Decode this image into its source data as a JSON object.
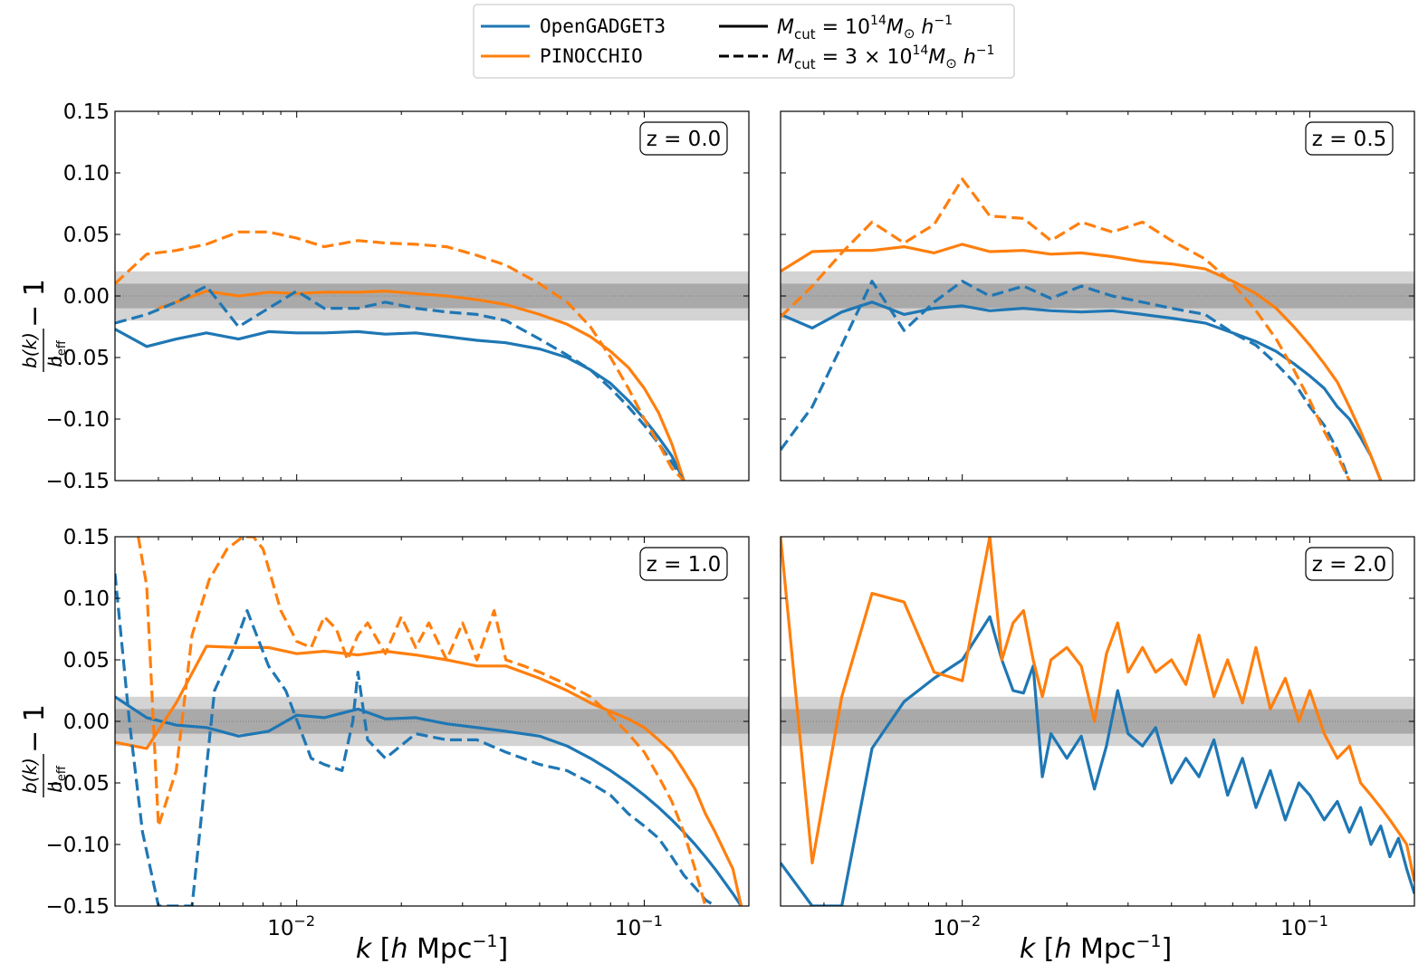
{
  "legend": {
    "series": [
      {
        "label": "OpenGADGET3",
        "color": "#1f77b4"
      },
      {
        "label": "PINOCCHIO",
        "color": "#ff7f0e"
      }
    ],
    "cuts": [
      {
        "style": "solid",
        "text": "M_cut = 10^14 M_⊙ h^-1",
        "exponent": "14",
        "prefix": ""
      },
      {
        "style": "dashed",
        "text": "M_cut = 3 × 10^14 M_⊙ h^-1",
        "exponent": "14",
        "prefix": "3 × "
      }
    ]
  },
  "labels": {
    "ylabel": "b(k)/b_eff − 1",
    "xlabel": "k [h Mpc^-1]",
    "xticks": [
      "10^-2",
      "10^-1"
    ],
    "yticks": [
      "0.15",
      "0.10",
      "0.05",
      "0.00",
      "−0.05",
      "−0.10",
      "−0.15"
    ]
  },
  "chart_data": [
    {
      "type": "line",
      "panel": "z = 0.0",
      "xscale": "log",
      "xlim": [
        0.003,
        0.2
      ],
      "ylim": [
        -0.15,
        0.15
      ],
      "bands": [
        {
          "lo": -0.02,
          "hi": 0.02
        },
        {
          "lo": -0.01,
          "hi": 0.01
        }
      ],
      "series": [
        {
          "name": "OpenGADGET3",
          "cut": "1e14",
          "style": "solid",
          "x": [
            0.003,
            0.0037,
            0.0045,
            0.0055,
            0.0068,
            0.0083,
            0.01,
            0.012,
            0.015,
            0.018,
            0.022,
            0.027,
            0.033,
            0.04,
            0.05,
            0.06,
            0.07,
            0.08,
            0.09,
            0.1,
            0.11,
            0.12,
            0.13
          ],
          "y": [
            -0.027,
            -0.041,
            -0.035,
            -0.03,
            -0.035,
            -0.029,
            -0.03,
            -0.03,
            -0.029,
            -0.031,
            -0.03,
            -0.033,
            -0.036,
            -0.038,
            -0.043,
            -0.05,
            -0.06,
            -0.071,
            -0.085,
            -0.1,
            -0.115,
            -0.13,
            -0.15
          ]
        },
        {
          "name": "PINOCCHIO",
          "cut": "1e14",
          "style": "solid",
          "x": [
            0.004,
            0.0045,
            0.0055,
            0.0068,
            0.0083,
            0.01,
            0.012,
            0.015,
            0.018,
            0.022,
            0.027,
            0.033,
            0.04,
            0.05,
            0.06,
            0.07,
            0.08,
            0.09,
            0.1,
            0.11,
            0.12,
            0.13
          ],
          "y": [
            -0.01,
            -0.005,
            0.004,
            0.0,
            0.003,
            0.002,
            0.003,
            0.003,
            0.004,
            0.002,
            0.0,
            -0.003,
            -0.007,
            -0.015,
            -0.023,
            -0.033,
            -0.045,
            -0.058,
            -0.075,
            -0.095,
            -0.12,
            -0.15
          ]
        },
        {
          "name": "OpenGADGET3",
          "cut": "3e14",
          "style": "dashed",
          "x": [
            0.003,
            0.0037,
            0.0045,
            0.0055,
            0.0068,
            0.0083,
            0.01,
            0.012,
            0.015,
            0.018,
            0.022,
            0.027,
            0.033,
            0.04,
            0.05,
            0.06,
            0.07,
            0.08,
            0.09,
            0.1,
            0.11,
            0.12,
            0.13
          ],
          "y": [
            -0.022,
            -0.015,
            -0.005,
            0.008,
            -0.025,
            -0.01,
            0.004,
            -0.01,
            -0.01,
            -0.005,
            -0.01,
            -0.013,
            -0.015,
            -0.02,
            -0.035,
            -0.048,
            -0.06,
            -0.075,
            -0.09,
            -0.105,
            -0.12,
            -0.135,
            -0.15
          ]
        },
        {
          "name": "PINOCCHIO",
          "cut": "3e14",
          "style": "dashed",
          "x": [
            0.003,
            0.0037,
            0.0045,
            0.0055,
            0.0068,
            0.0083,
            0.01,
            0.012,
            0.015,
            0.018,
            0.022,
            0.027,
            0.033,
            0.04,
            0.05,
            0.06,
            0.07,
            0.08,
            0.09,
            0.1,
            0.11,
            0.12,
            0.13
          ],
          "y": [
            0.01,
            0.034,
            0.037,
            0.042,
            0.052,
            0.052,
            0.047,
            0.04,
            0.045,
            0.043,
            0.042,
            0.04,
            0.033,
            0.025,
            0.01,
            -0.005,
            -0.025,
            -0.05,
            -0.075,
            -0.1,
            -0.12,
            -0.14,
            -0.15
          ]
        }
      ]
    },
    {
      "type": "line",
      "panel": "z = 0.5",
      "xscale": "log",
      "xlim": [
        0.003,
        0.2
      ],
      "ylim": [
        -0.15,
        0.15
      ],
      "bands": [
        {
          "lo": -0.02,
          "hi": 0.02
        },
        {
          "lo": -0.01,
          "hi": 0.01
        }
      ],
      "series": [
        {
          "name": "OpenGADGET3",
          "cut": "1e14",
          "style": "solid",
          "x": [
            0.003,
            0.0037,
            0.0045,
            0.0055,
            0.0068,
            0.0083,
            0.01,
            0.012,
            0.015,
            0.018,
            0.022,
            0.027,
            0.033,
            0.04,
            0.05,
            0.06,
            0.07,
            0.08,
            0.09,
            0.1,
            0.11,
            0.12,
            0.13,
            0.14,
            0.15,
            0.16
          ],
          "y": [
            -0.015,
            -0.026,
            -0.013,
            -0.005,
            -0.015,
            -0.01,
            -0.008,
            -0.012,
            -0.01,
            -0.012,
            -0.013,
            -0.012,
            -0.015,
            -0.018,
            -0.022,
            -0.03,
            -0.037,
            -0.045,
            -0.055,
            -0.065,
            -0.075,
            -0.09,
            -0.1,
            -0.115,
            -0.13,
            -0.15
          ]
        },
        {
          "name": "PINOCCHIO",
          "cut": "1e14",
          "style": "solid",
          "x": [
            0.003,
            0.0037,
            0.0045,
            0.0055,
            0.0068,
            0.0083,
            0.01,
            0.012,
            0.015,
            0.018,
            0.022,
            0.027,
            0.033,
            0.04,
            0.05,
            0.06,
            0.07,
            0.08,
            0.09,
            0.1,
            0.11,
            0.12,
            0.13,
            0.14,
            0.15,
            0.16
          ],
          "y": [
            0.02,
            0.036,
            0.037,
            0.037,
            0.04,
            0.035,
            0.042,
            0.036,
            0.037,
            0.034,
            0.035,
            0.032,
            0.028,
            0.026,
            0.022,
            0.012,
            0.002,
            -0.01,
            -0.025,
            -0.04,
            -0.055,
            -0.07,
            -0.09,
            -0.11,
            -0.13,
            -0.15
          ]
        },
        {
          "name": "OpenGADGET3",
          "cut": "3e14",
          "style": "dashed",
          "x": [
            0.003,
            0.0037,
            0.0045,
            0.0055,
            0.0068,
            0.0083,
            0.01,
            0.012,
            0.015,
            0.018,
            0.022,
            0.027,
            0.033,
            0.04,
            0.05,
            0.06,
            0.07,
            0.08,
            0.09,
            0.1,
            0.11,
            0.12,
            0.13
          ],
          "y": [
            -0.125,
            -0.09,
            -0.04,
            0.012,
            -0.028,
            -0.005,
            0.012,
            0.0,
            0.008,
            -0.002,
            0.008,
            0.0,
            -0.005,
            -0.01,
            -0.015,
            -0.03,
            -0.04,
            -0.055,
            -0.07,
            -0.09,
            -0.105,
            -0.125,
            -0.15
          ]
        },
        {
          "name": "PINOCCHIO",
          "cut": "3e14",
          "style": "dashed",
          "x": [
            0.003,
            0.0037,
            0.0045,
            0.0055,
            0.0068,
            0.0083,
            0.01,
            0.012,
            0.015,
            0.018,
            0.022,
            0.027,
            0.033,
            0.04,
            0.05,
            0.06,
            0.07,
            0.08,
            0.09,
            0.1,
            0.11,
            0.12,
            0.13
          ],
          "y": [
            -0.017,
            0.008,
            0.035,
            0.06,
            0.043,
            0.058,
            0.095,
            0.065,
            0.063,
            0.045,
            0.06,
            0.052,
            0.06,
            0.045,
            0.03,
            0.01,
            -0.012,
            -0.035,
            -0.06,
            -0.085,
            -0.11,
            -0.13,
            -0.15
          ]
        }
      ]
    },
    {
      "type": "line",
      "panel": "z = 1.0",
      "xscale": "log",
      "xlim": [
        0.003,
        0.2
      ],
      "ylim": [
        -0.15,
        0.15
      ],
      "bands": [
        {
          "lo": -0.02,
          "hi": 0.02
        },
        {
          "lo": -0.01,
          "hi": 0.01
        }
      ],
      "series": [
        {
          "name": "OpenGADGET3",
          "cut": "1e14",
          "style": "solid",
          "x": [
            0.003,
            0.0037,
            0.0045,
            0.0055,
            0.0068,
            0.0083,
            0.01,
            0.012,
            0.015,
            0.018,
            0.022,
            0.027,
            0.033,
            0.04,
            0.05,
            0.06,
            0.07,
            0.08,
            0.09,
            0.1,
            0.11,
            0.12,
            0.13,
            0.14,
            0.15,
            0.16,
            0.18,
            0.19
          ],
          "y": [
            0.02,
            0.003,
            -0.003,
            -0.005,
            -0.012,
            -0.008,
            0.005,
            0.003,
            0.01,
            0.002,
            0.003,
            -0.002,
            -0.005,
            -0.008,
            -0.012,
            -0.02,
            -0.03,
            -0.04,
            -0.05,
            -0.06,
            -0.07,
            -0.08,
            -0.09,
            -0.1,
            -0.11,
            -0.12,
            -0.14,
            -0.15
          ]
        },
        {
          "name": "PINOCCHIO",
          "cut": "1e14",
          "style": "solid",
          "x": [
            0.003,
            0.0037,
            0.0045,
            0.0055,
            0.0068,
            0.0083,
            0.01,
            0.012,
            0.015,
            0.018,
            0.022,
            0.027,
            0.033,
            0.04,
            0.05,
            0.06,
            0.07,
            0.08,
            0.09,
            0.1,
            0.11,
            0.12,
            0.13,
            0.14,
            0.15,
            0.16,
            0.18,
            0.19
          ],
          "y": [
            -0.017,
            -0.022,
            0.015,
            0.061,
            0.06,
            0.06,
            0.055,
            0.057,
            0.054,
            0.057,
            0.054,
            0.05,
            0.045,
            0.045,
            0.035,
            0.025,
            0.015,
            0.008,
            0.002,
            -0.005,
            -0.015,
            -0.025,
            -0.04,
            -0.055,
            -0.075,
            -0.09,
            -0.12,
            -0.15
          ]
        },
        {
          "name": "OpenGADGET3",
          "cut": "3e14",
          "style": "dashed",
          "x": [
            0.003,
            0.0033,
            0.0036,
            0.004,
            0.0045,
            0.005,
            0.0058,
            0.0066,
            0.0072,
            0.0083,
            0.0093,
            0.011,
            0.012,
            0.0135,
            0.0145,
            0.015,
            0.016,
            0.018,
            0.022,
            0.027,
            0.033,
            0.04,
            0.05,
            0.06,
            0.07,
            0.08,
            0.09,
            0.1,
            0.11,
            0.12,
            0.13,
            0.14,
            0.15,
            0.16
          ],
          "y": [
            0.12,
            0.0,
            -0.09,
            -0.15,
            -0.15,
            -0.15,
            0.025,
            0.06,
            0.09,
            0.045,
            0.025,
            -0.03,
            -0.035,
            -0.04,
            0.0,
            0.04,
            -0.015,
            -0.03,
            -0.01,
            -0.015,
            -0.015,
            -0.025,
            -0.035,
            -0.04,
            -0.05,
            -0.06,
            -0.075,
            -0.085,
            -0.095,
            -0.11,
            -0.125,
            -0.135,
            -0.145,
            -0.15
          ]
        },
        {
          "name": "PINOCCHIO",
          "cut": "3e14",
          "style": "dashed",
          "x": [
            0.0035,
            0.0037,
            0.004,
            0.0045,
            0.005,
            0.0056,
            0.0063,
            0.007,
            0.0075,
            0.008,
            0.009,
            0.01,
            0.011,
            0.012,
            0.013,
            0.014,
            0.015,
            0.016,
            0.018,
            0.02,
            0.022,
            0.024,
            0.027,
            0.03,
            0.033,
            0.037,
            0.04,
            0.045,
            0.05,
            0.06,
            0.07,
            0.08,
            0.09,
            0.1,
            0.11,
            0.12,
            0.13,
            0.14,
            0.15
          ],
          "y": [
            0.15,
            0.11,
            -0.085,
            -0.04,
            0.07,
            0.115,
            0.14,
            0.15,
            0.15,
            0.14,
            0.09,
            0.065,
            0.06,
            0.085,
            0.075,
            0.05,
            0.07,
            0.08,
            0.055,
            0.085,
            0.06,
            0.08,
            0.05,
            0.08,
            0.05,
            0.09,
            0.05,
            0.045,
            0.04,
            0.03,
            0.02,
            0.005,
            -0.01,
            -0.025,
            -0.045,
            -0.065,
            -0.09,
            -0.12,
            -0.15
          ]
        }
      ]
    },
    {
      "type": "line",
      "panel": "z = 2.0",
      "xscale": "log",
      "xlim": [
        0.003,
        0.2
      ],
      "ylim": [
        -0.15,
        0.15
      ],
      "bands": [
        {
          "lo": -0.02,
          "hi": 0.02
        },
        {
          "lo": -0.01,
          "hi": 0.01
        }
      ],
      "series": [
        {
          "name": "OpenGADGET3",
          "cut": "1e14",
          "style": "solid",
          "x": [
            0.003,
            0.0037,
            0.0045,
            0.0055,
            0.0068,
            0.0083,
            0.01,
            0.012,
            0.013,
            0.014,
            0.015,
            0.016,
            0.017,
            0.018,
            0.02,
            0.022,
            0.024,
            0.026,
            0.028,
            0.03,
            0.033,
            0.036,
            0.04,
            0.044,
            0.048,
            0.053,
            0.058,
            0.064,
            0.07,
            0.077,
            0.085,
            0.093,
            0.1,
            0.11,
            0.12,
            0.13,
            0.14,
            0.15,
            0.16,
            0.17,
            0.18,
            0.19,
            0.2
          ],
          "y": [
            -0.115,
            -0.15,
            -0.15,
            -0.022,
            0.016,
            0.035,
            0.05,
            0.085,
            0.05,
            0.025,
            0.023,
            0.045,
            -0.045,
            -0.01,
            -0.03,
            -0.012,
            -0.055,
            -0.02,
            0.025,
            -0.01,
            -0.02,
            -0.005,
            -0.05,
            -0.03,
            -0.045,
            -0.015,
            -0.06,
            -0.03,
            -0.07,
            -0.04,
            -0.08,
            -0.05,
            -0.06,
            -0.08,
            -0.065,
            -0.09,
            -0.07,
            -0.1,
            -0.085,
            -0.11,
            -0.095,
            -0.12,
            -0.14
          ]
        },
        {
          "name": "PINOCCHIO",
          "cut": "1e14",
          "style": "solid",
          "x": [
            0.003,
            0.0037,
            0.0045,
            0.0055,
            0.0068,
            0.0083,
            0.01,
            0.012,
            0.013,
            0.014,
            0.015,
            0.016,
            0.017,
            0.018,
            0.02,
            0.022,
            0.024,
            0.026,
            0.028,
            0.03,
            0.033,
            0.036,
            0.04,
            0.044,
            0.048,
            0.053,
            0.058,
            0.064,
            0.07,
            0.077,
            0.085,
            0.093,
            0.1,
            0.11,
            0.12,
            0.13,
            0.14,
            0.15,
            0.16,
            0.17,
            0.18,
            0.19,
            0.2
          ],
          "y": [
            0.15,
            -0.115,
            0.02,
            0.104,
            0.097,
            0.04,
            0.033,
            0.15,
            0.05,
            0.08,
            0.09,
            0.05,
            0.02,
            0.05,
            0.06,
            0.045,
            0.0,
            0.055,
            0.08,
            0.04,
            0.06,
            0.04,
            0.05,
            0.03,
            0.07,
            0.02,
            0.05,
            0.015,
            0.06,
            0.01,
            0.035,
            0.0,
            0.025,
            -0.01,
            -0.03,
            -0.02,
            -0.05,
            -0.06,
            -0.07,
            -0.08,
            -0.09,
            -0.1,
            -0.13
          ]
        }
      ]
    }
  ]
}
